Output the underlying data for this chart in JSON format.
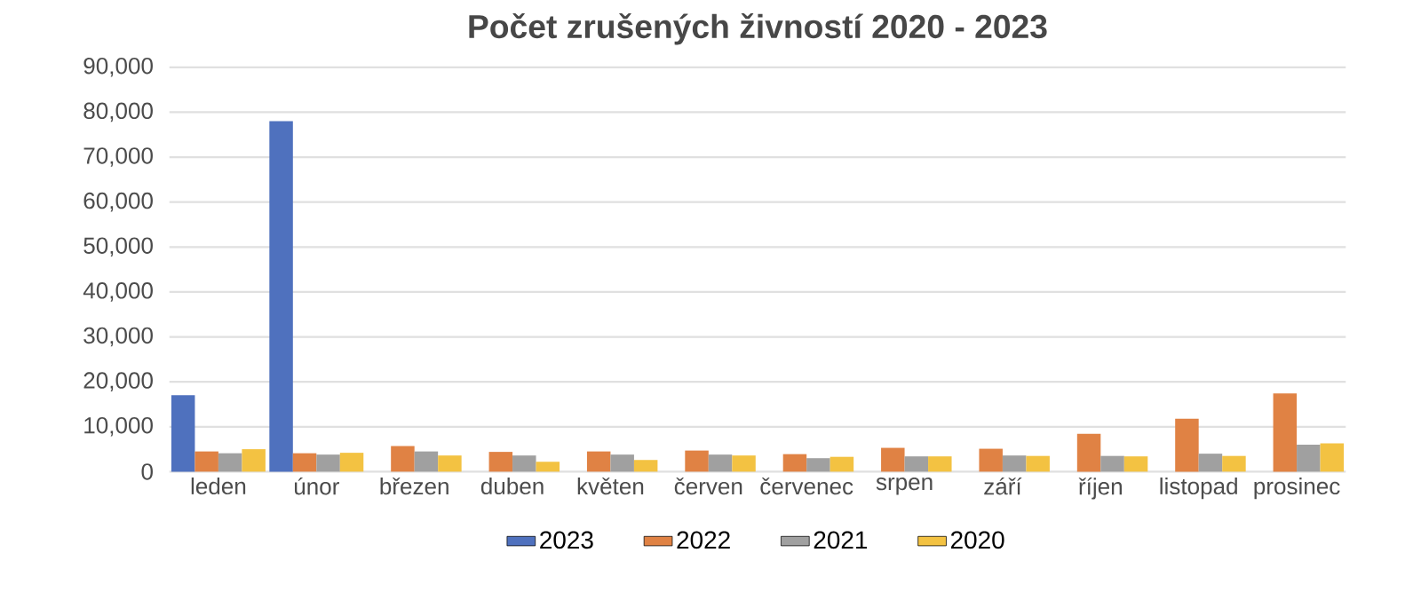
{
  "chart_data": {
    "type": "bar",
    "title": "Počet zrušených živností 2020 - 2023",
    "categories": [
      "leden",
      "únor",
      "březen",
      "duben",
      "květen",
      "červen",
      "červenec",
      "srpen",
      "září",
      "říjen",
      "listopad",
      "prosinec"
    ],
    "series": [
      {
        "name": "2023",
        "color": "#4f71be",
        "values": [
          17000,
          78000,
          null,
          null,
          null,
          null,
          null,
          null,
          null,
          null,
          null,
          null
        ]
      },
      {
        "name": "2022",
        "color": "#e08244",
        "values": [
          4500,
          4100,
          5700,
          4400,
          4500,
          4700,
          3900,
          5300,
          5100,
          8400,
          11800,
          17400
        ]
      },
      {
        "name": "2021",
        "color": "#a0a0a0",
        "values": [
          4100,
          3800,
          4500,
          3600,
          3800,
          3800,
          3000,
          3400,
          3600,
          3500,
          4000,
          6000
        ]
      },
      {
        "name": "2020",
        "color": "#f3c242",
        "values": [
          5000,
          4200,
          3600,
          2200,
          2600,
          3600,
          3300,
          3400,
          3500,
          3400,
          3500,
          6300
        ]
      }
    ],
    "ylim": [
      0,
      90000
    ],
    "yticks": [
      0,
      {
        "value": 10000,
        "label": "10,000"
      },
      {
        "value": 20000,
        "label": "20,000"
      },
      {
        "value": 30000,
        "label": "30,000"
      },
      {
        "value": 40000,
        "label": "40,000"
      },
      {
        "value": 50000,
        "label": "50,000"
      },
      {
        "value": 60000,
        "label": "60,000"
      },
      {
        "value": 70000,
        "label": "70,000"
      },
      {
        "value": 80000,
        "label": "80,000"
      },
      {
        "value": 90000,
        "label": "90,000"
      }
    ],
    "grid": "y",
    "legend": "bottom"
  }
}
